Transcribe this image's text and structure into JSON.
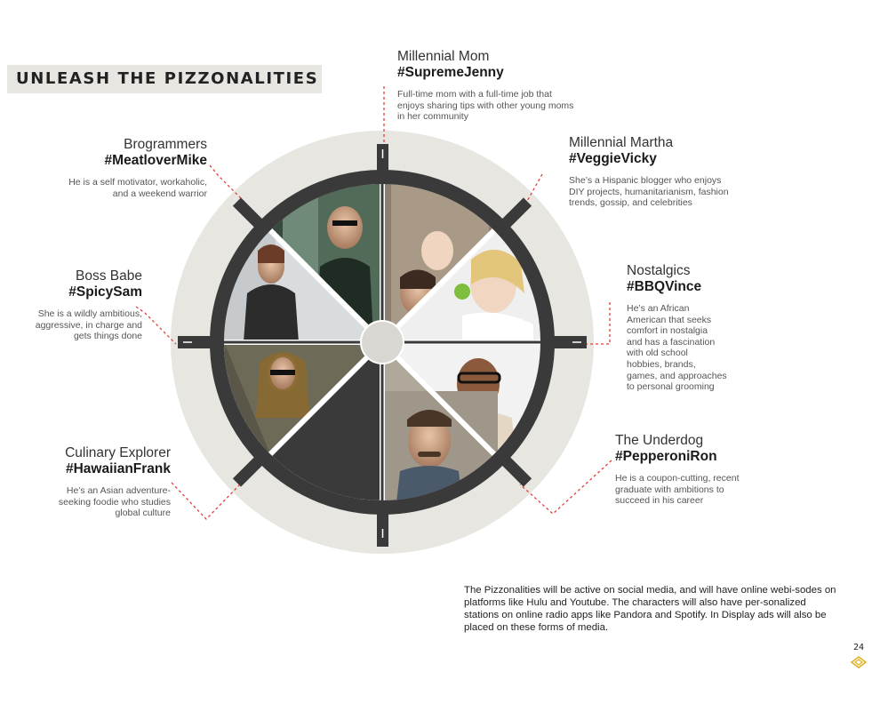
{
  "header": {
    "title": "UNLEASH THE PIZZONALITIES"
  },
  "personas": {
    "mom": {
      "category": "Millennial Mom",
      "hashtag": "#SupremeJenny",
      "description": "Full-time mom with a full-time job that\nenjoys sharing tips with other young moms\nin her  community"
    },
    "brogrammers": {
      "category": "Brogrammers",
      "hashtag": "#MeatloverMike",
      "description": "He is a self motivator, workaholic,\nand a weekend warrior"
    },
    "martha": {
      "category": "Millennial Martha",
      "hashtag": "#VeggieVicky",
      "description": "She’s a Hispanic blogger who enjoys\nDIY projects, humanitarianism, fashion\ntrends, gossip, and celebrities"
    },
    "bossbabe": {
      "category": "Boss Babe",
      "hashtag": "#SpicySam",
      "description": "She is a wildly ambitious,\naggressive, in charge  and\ngets things done"
    },
    "nostalgics": {
      "category": "Nostalgics",
      "hashtag": "#BBQVince",
      "description": "He’s an African\nAmerican that seeks\ncomfort in nostalgia\nand has a fascination\nwith old school\nhobbies, brands,\ngames, and approaches\nto personal grooming"
    },
    "culinary": {
      "category": "Culinary Explorer",
      "hashtag": "#HawaiianFrank",
      "description": "He’s an Asian adventure-\nseeking foodie who studies\nglobal culture"
    },
    "underdog": {
      "category": "The Underdog",
      "hashtag": "#PepperoniRon",
      "description": "He is a coupon-cutting, recent\ngraduate with ambitions to\nsucceed in his career"
    }
  },
  "body_text": "The Pizzonalities will be active on social media, and will have online webi-sodes on platforms like Hulu and Youtube. The characters will also have per-sonalized stations on online radio apps like Pandora and Spotify. In Display ads will also be placed on these forms of media.",
  "page_number": "24",
  "colors": {
    "wheel_dark": "#3a3a3a",
    "halo": "#e8e6e1",
    "connector": "#e0403a",
    "logo": "#e0b020"
  }
}
